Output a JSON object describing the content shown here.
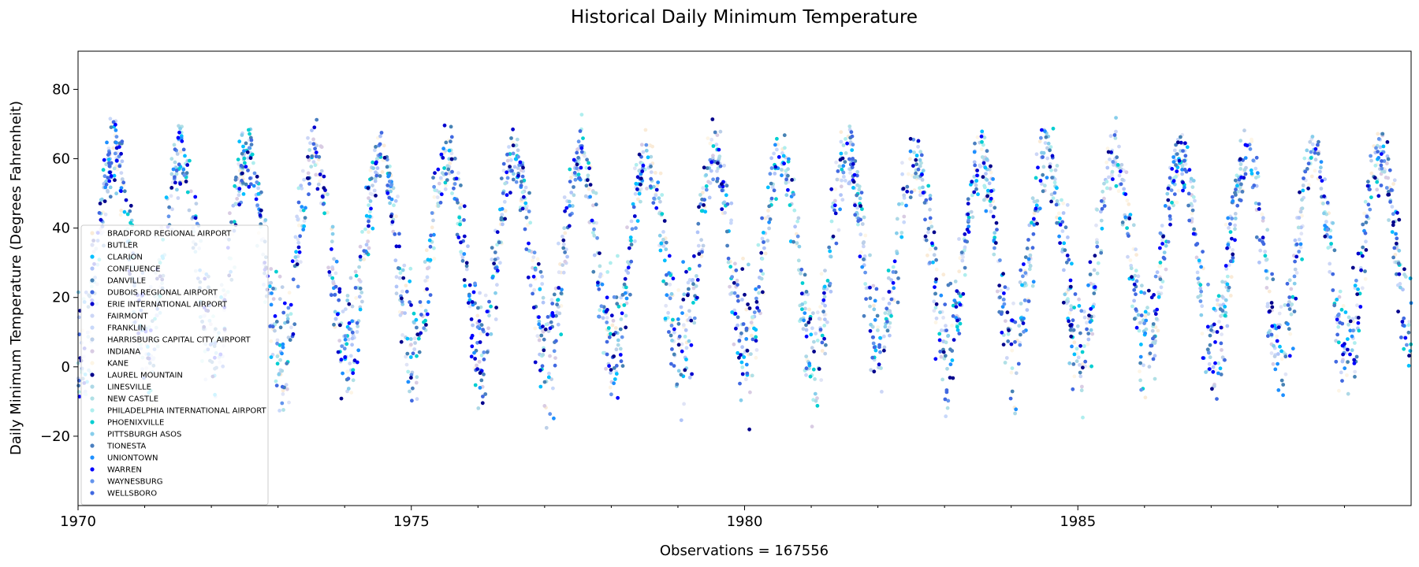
{
  "chart_data": {
    "type": "scatter",
    "title": "Historical Daily Minimum Temperature",
    "xlabel": "Observations = 167556",
    "ylabel": "Daily Minimum Temperature (Degrees Fahrenheit)",
    "x_range": [
      1970.0,
      1990.0
    ],
    "ylim": [
      -40,
      91
    ],
    "x_ticks": [
      {
        "value": 1970,
        "label": "1970"
      },
      {
        "value": 1975,
        "label": "1975"
      },
      {
        "value": 1980,
        "label": "1980"
      },
      {
        "value": 1985,
        "label": "1985"
      }
    ],
    "y_ticks": [
      {
        "value": -20,
        "label": "−20"
      },
      {
        "value": 0,
        "label": "0"
      },
      {
        "value": 20,
        "label": "20"
      },
      {
        "value": 40,
        "label": "40"
      },
      {
        "value": 60,
        "label": "60"
      },
      {
        "value": 80,
        "label": "80"
      }
    ],
    "grid": false,
    "legend_position": "lower-left",
    "seasonal_pattern": {
      "annual_mean": 33,
      "annual_amplitude": 28,
      "peak_month": "July"
    },
    "series": [
      {
        "name": "BRADFORD REGIONAL AIRPORT",
        "color": "#faebd7"
      },
      {
        "name": "BUTLER",
        "color": "#e0e4f6"
      },
      {
        "name": "CLARION",
        "color": "#00bfff"
      },
      {
        "name": "CONFLUENCE",
        "color": "#b0c4f8"
      },
      {
        "name": "DANVILLE",
        "color": "#4682b4"
      },
      {
        "name": "DUBOIS REGIONAL AIRPORT",
        "color": "#4169e1"
      },
      {
        "name": "ERIE INTERNATIONAL AIRPORT",
        "color": "#0000cd"
      },
      {
        "name": "FAIRMONT",
        "color": "#ccd6f6"
      },
      {
        "name": "FRANKLIN",
        "color": "#c8d8fa"
      },
      {
        "name": "HARRISBURG CAPITAL CITY AIRPORT",
        "color": "#bccfe8"
      },
      {
        "name": "INDIANA",
        "color": "#d9cce3"
      },
      {
        "name": "KANE",
        "color": "#fdf5e6"
      },
      {
        "name": "LAUREL MOUNTAIN",
        "color": "#00008b"
      },
      {
        "name": "LINESVILLE",
        "color": "#add8e6"
      },
      {
        "name": "NEW CASTLE",
        "color": "#b0e0e6"
      },
      {
        "name": "PHILADELPHIA INTERNATIONAL AIRPORT",
        "color": "#afeeee"
      },
      {
        "name": "PHOENIXVILLE",
        "color": "#00ced1"
      },
      {
        "name": "PITTSBURGH ASOS",
        "color": "#87ceeb"
      },
      {
        "name": "TIONESTA",
        "color": "#4a7fc0"
      },
      {
        "name": "UNIONTOWN",
        "color": "#1e90ff"
      },
      {
        "name": "WARREN",
        "color": "#0000ff"
      },
      {
        "name": "WAYNESBURG",
        "color": "#6495ed"
      },
      {
        "name": "WELLSBORO",
        "color": "#4169e1"
      }
    ]
  }
}
